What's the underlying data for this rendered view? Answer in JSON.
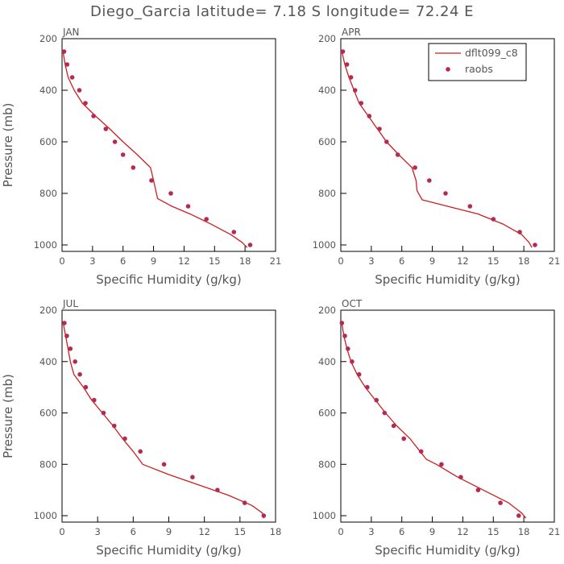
{
  "title": "Diego_Garcia  latitude= 7.18 S longitude= 72.24 E",
  "colors": {
    "model_line": "#cc1f1f",
    "obs_marker": "#b52a52",
    "frame": "#000000",
    "text": "#555555"
  },
  "legend": {
    "model_label": "dflt099_c8",
    "obs_label": "raobs",
    "placement": "top-right of APR panel"
  },
  "chart_data": [
    {
      "type": "line",
      "panel_label": "JAN",
      "xlabel": "Specific Humidity (g/kg)",
      "ylabel": "Pressure (mb)",
      "xlim": [
        0,
        21
      ],
      "ylim": [
        200,
        1025
      ],
      "y_inverted": true,
      "xticks": [
        "0",
        "3",
        "6",
        "9",
        "12",
        "15",
        "18",
        "21"
      ],
      "yticks": [
        "200",
        "400",
        "600",
        "800",
        "1000"
      ],
      "series": [
        {
          "name": "dflt099_c8",
          "kind": "line",
          "x": [
            0.1,
            0.3,
            0.6,
            1.2,
            2.0,
            3.3,
            4.7,
            6.0,
            7.4,
            8.7,
            9.0,
            9.4,
            10.8,
            12.6,
            14.7,
            16.6,
            17.7,
            18.2
          ],
          "y": [
            250,
            300,
            350,
            400,
            450,
            500,
            550,
            600,
            650,
            700,
            750,
            820,
            850,
            880,
            920,
            960,
            990,
            1010
          ]
        },
        {
          "name": "raobs",
          "kind": "scatter",
          "x": [
            0.2,
            0.5,
            1.0,
            1.7,
            2.3,
            3.1,
            4.3,
            5.2,
            6.0,
            7.0,
            8.8,
            10.7,
            12.4,
            14.2,
            16.9,
            18.5
          ],
          "y": [
            250,
            300,
            350,
            400,
            450,
            500,
            550,
            600,
            650,
            700,
            750,
            800,
            850,
            900,
            950,
            1000
          ]
        }
      ]
    },
    {
      "type": "line",
      "panel_label": "APR",
      "xlabel": "Specific Humidity (g/kg)",
      "ylabel": "",
      "xlim": [
        0,
        21
      ],
      "ylim": [
        200,
        1025
      ],
      "y_inverted": true,
      "xticks": [
        "0",
        "3",
        "6",
        "9",
        "12",
        "15",
        "18",
        "21"
      ],
      "yticks": [
        "200",
        "400",
        "600",
        "800",
        "1000"
      ],
      "series": [
        {
          "name": "dflt099_c8",
          "kind": "line",
          "x": [
            0.1,
            0.4,
            0.8,
            1.3,
            1.8,
            2.7,
            3.6,
            4.5,
            5.7,
            7.0,
            7.4,
            7.5,
            8.0,
            10.5,
            13.5,
            16.0,
            17.8,
            18.5,
            18.8
          ],
          "y": [
            250,
            300,
            350,
            400,
            450,
            500,
            550,
            600,
            650,
            700,
            750,
            790,
            825,
            850,
            880,
            920,
            960,
            990,
            1010
          ]
        },
        {
          "name": "raobs",
          "kind": "scatter",
          "x": [
            0.2,
            0.6,
            1.0,
            1.4,
            2.0,
            2.8,
            3.8,
            4.5,
            5.6,
            7.3,
            8.7,
            10.3,
            12.7,
            15.0,
            17.6,
            19.1
          ],
          "y": [
            250,
            300,
            350,
            400,
            450,
            500,
            550,
            600,
            650,
            700,
            750,
            800,
            850,
            900,
            950,
            1000
          ]
        }
      ]
    },
    {
      "type": "line",
      "panel_label": "JUL",
      "xlabel": "Specific Humidity (g/kg)",
      "ylabel": "Pressure (mb)",
      "xlim": [
        0,
        18
      ],
      "ylim": [
        200,
        1025
      ],
      "y_inverted": true,
      "xticks": [
        "0",
        "3",
        "6",
        "9",
        "12",
        "15",
        "18"
      ],
      "yticks": [
        "200",
        "400",
        "600",
        "800",
        "1000"
      ],
      "series": [
        {
          "name": "dflt099_c8",
          "kind": "line",
          "x": [
            0.1,
            0.3,
            0.5,
            0.7,
            1.0,
            1.8,
            2.5,
            3.4,
            4.3,
            5.1,
            6.0,
            6.8,
            9.0,
            11.5,
            14.0,
            16.0,
            16.9,
            17.0
          ],
          "y": [
            250,
            300,
            350,
            400,
            450,
            500,
            550,
            600,
            650,
            700,
            750,
            800,
            840,
            880,
            920,
            960,
            990,
            1010
          ]
        },
        {
          "name": "raobs",
          "kind": "scatter",
          "x": [
            0.2,
            0.4,
            0.7,
            1.1,
            1.5,
            2.0,
            2.7,
            3.5,
            4.4,
            5.3,
            6.6,
            8.6,
            11.0,
            13.1,
            15.4,
            17.0
          ],
          "y": [
            250,
            300,
            350,
            400,
            450,
            500,
            550,
            600,
            650,
            700,
            750,
            800,
            850,
            900,
            950,
            1000
          ]
        }
      ]
    },
    {
      "type": "line",
      "panel_label": "OCT",
      "xlabel": "Specific Humidity (g/kg)",
      "ylabel": "",
      "xlim": [
        0,
        21
      ],
      "ylim": [
        200,
        1025
      ],
      "y_inverted": true,
      "xticks": [
        "0",
        "3",
        "6",
        "9",
        "12",
        "15",
        "18",
        "21"
      ],
      "yticks": [
        "200",
        "400",
        "600",
        "800",
        "1000"
      ],
      "series": [
        {
          "name": "dflt099_c8",
          "kind": "line",
          "x": [
            0.1,
            0.3,
            0.6,
            1.0,
            1.6,
            2.4,
            3.4,
            4.4,
            5.5,
            6.8,
            7.8,
            8.4,
            9.4,
            11.5,
            14.0,
            16.5,
            17.8,
            18.2
          ],
          "y": [
            250,
            300,
            350,
            400,
            450,
            500,
            550,
            600,
            650,
            700,
            750,
            780,
            800,
            850,
            900,
            950,
            990,
            1010
          ]
        },
        {
          "name": "raobs",
          "kind": "scatter",
          "x": [
            0.1,
            0.4,
            0.7,
            1.1,
            1.8,
            2.6,
            3.5,
            4.3,
            5.2,
            6.2,
            7.9,
            9.9,
            11.8,
            13.5,
            15.7,
            17.5
          ],
          "y": [
            250,
            300,
            350,
            400,
            450,
            500,
            550,
            600,
            650,
            700,
            750,
            800,
            850,
            900,
            950,
            1000
          ]
        }
      ]
    }
  ]
}
